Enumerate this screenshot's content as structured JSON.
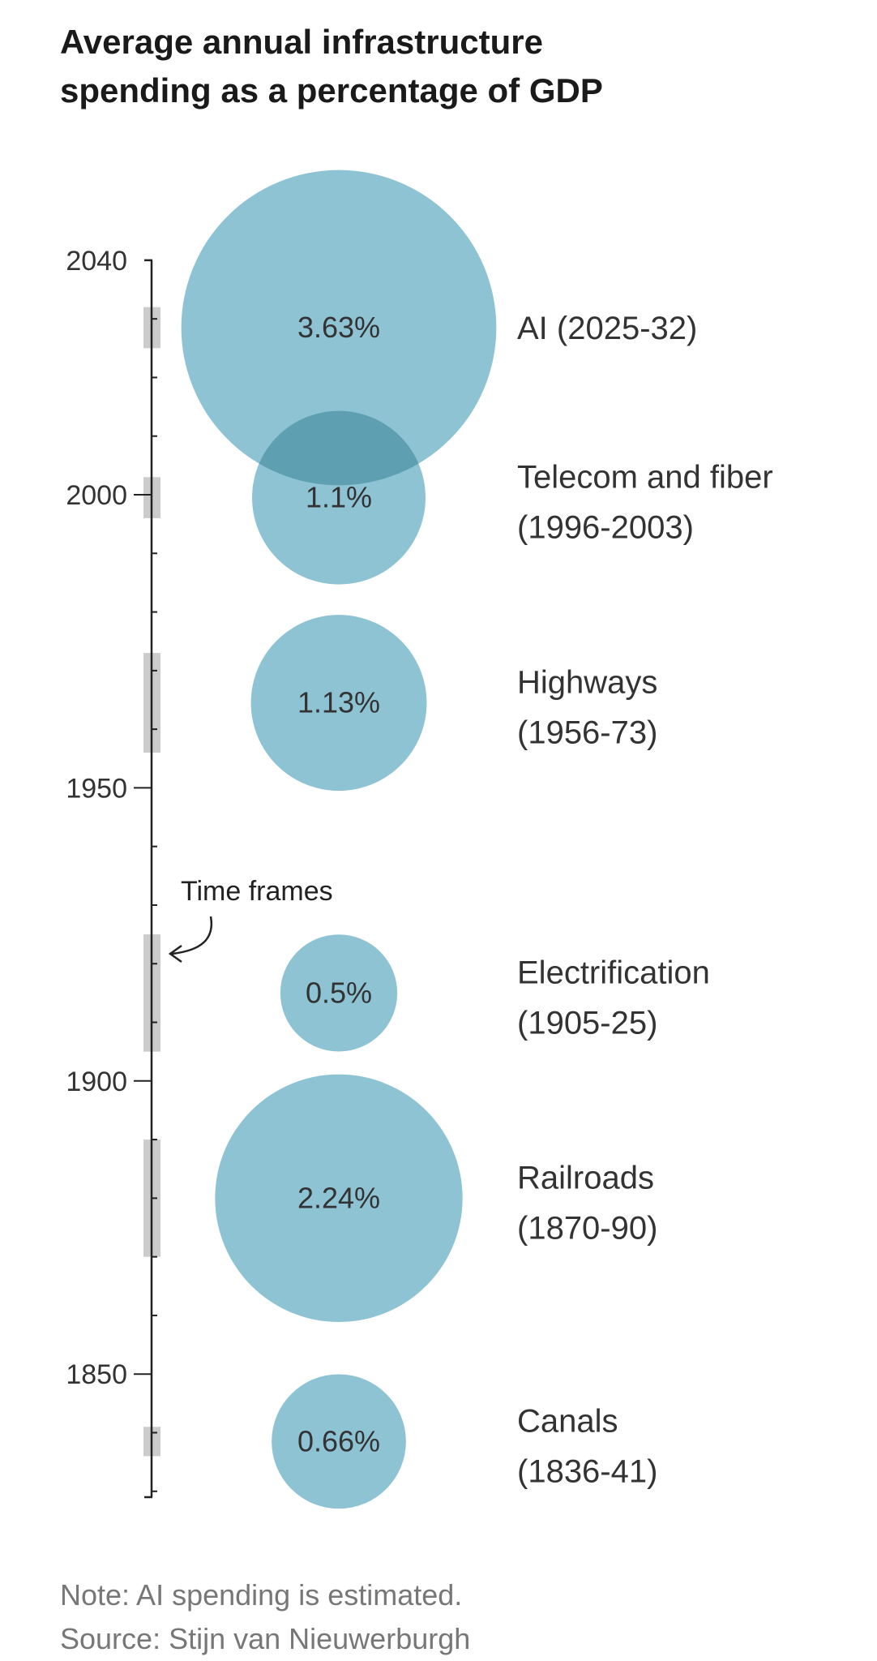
{
  "title_lines": [
    "Average annual infrastructure",
    "spending as a percentage of GDP"
  ],
  "note": "Note: AI spending is estimated.",
  "source": "Source: Stijn van Nieuwerburgh",
  "callout": "Time frames",
  "colors": {
    "bubble": "#8ec3d4",
    "overlap": "#5e9fb2",
    "timeframe": "#cccccc",
    "axis": "#222222",
    "text": "#333333"
  },
  "chart_data": {
    "type": "bubble",
    "title": "Average annual infrastructure spending as a percentage of GDP",
    "y_axis": {
      "range": [
        1829,
        2046
      ],
      "ticks": [
        1850,
        1900,
        1950,
        2000,
        2040
      ],
      "minor_tick_step": 10
    },
    "series": [
      {
        "label": "Canals",
        "years_label": "(1836-41)",
        "start": 1836,
        "end": 1841,
        "value": 0.66,
        "value_label": "0.66%"
      },
      {
        "label": "Railroads",
        "years_label": "(1870-90)",
        "start": 1870,
        "end": 1890,
        "value": 2.24,
        "value_label": "2.24%"
      },
      {
        "label": "Electrification",
        "years_label": "(1905-25)",
        "start": 1905,
        "end": 1925,
        "value": 0.5,
        "value_label": "0.5%"
      },
      {
        "label": "Highways",
        "years_label": "(1956-73)",
        "start": 1956,
        "end": 1973,
        "value": 1.13,
        "value_label": "1.13%"
      },
      {
        "label": "Telecom and fiber",
        "years_label": "(1996-2003)",
        "start": 1996,
        "end": 2003,
        "value": 1.1,
        "value_label": "1.1%"
      },
      {
        "label": "AI (2025-32)",
        "years_label": "",
        "start": 2025,
        "end": 2032,
        "value": 3.63,
        "value_label": "3.63%"
      }
    ]
  }
}
